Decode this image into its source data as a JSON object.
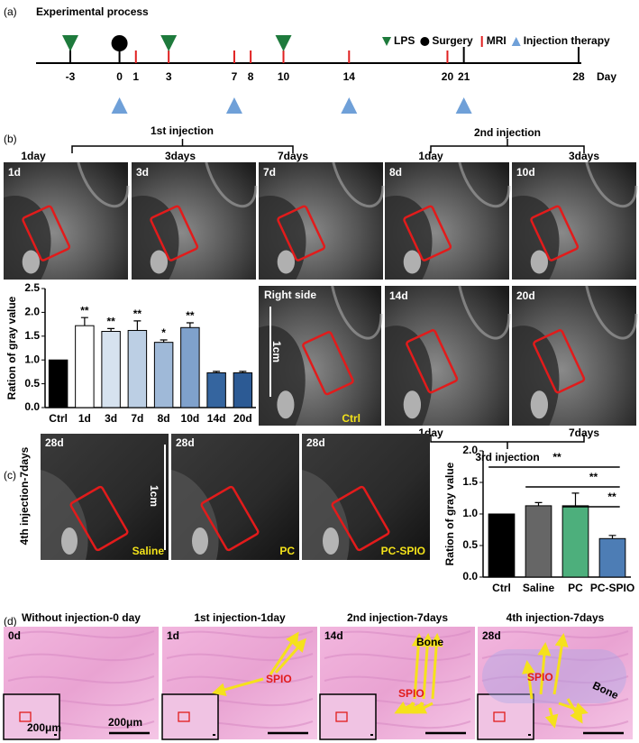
{
  "panel_labels": [
    "(a)",
    "(b)",
    "(c)",
    "(d)"
  ],
  "timeline": {
    "title": "Experimental process",
    "days": [
      -3,
      0,
      1,
      3,
      7,
      8,
      10,
      14,
      20,
      21,
      28
    ],
    "axis_label": "Day",
    "lps_days": [
      -3,
      3,
      10
    ],
    "surgery_days": [
      0
    ],
    "mri_days": [
      1,
      3,
      7,
      8,
      10,
      14,
      20
    ],
    "injection_days": [
      0,
      7,
      14,
      21
    ],
    "legend": [
      {
        "name": "LPS",
        "color": "#1e7a3c"
      },
      {
        "name": "Surgery",
        "color": "#000000"
      },
      {
        "name": "MRI",
        "color": "#e02020"
      },
      {
        "name": "Injection therapy",
        "color": "#6fa0d8"
      }
    ]
  },
  "injections": {
    "first": {
      "label": "1st injection",
      "start": "1day",
      "mid": "3days",
      "end": "7days"
    },
    "second": {
      "label": "2nd injection",
      "start": "1day",
      "end": "3days"
    },
    "third": {
      "label": "3rd injection",
      "start": "1day",
      "end": "7days"
    },
    "fourth": "4th injection-7days"
  },
  "mri_images": [
    "1d",
    "3d",
    "7d",
    "8d",
    "10d"
  ],
  "control_image": {
    "label": "Right side",
    "corner": "Ctrl",
    "scale": "1cm"
  },
  "late_images": [
    "14d",
    "20d"
  ],
  "c_images": {
    "day": [
      "28d",
      "28d",
      "28d"
    ],
    "groups": [
      "Saline",
      "PC",
      "PC-SPIO"
    ],
    "scale": "1cm"
  },
  "histology": {
    "panels": [
      {
        "title": "Without injection-0 day",
        "label": "0d"
      },
      {
        "title": "1st injection-1day",
        "label": "1d"
      },
      {
        "title": "2nd injection-7days",
        "label": "14d"
      },
      {
        "title": "4th injection-7days",
        "label": "28d"
      }
    ],
    "inset_scale": "200μm",
    "scale": "200μm",
    "spio": "SPIO",
    "bone": "Bone"
  },
  "chart_data": [
    {
      "type": "bar",
      "ylabel": "Ration of gray value",
      "categories": [
        "Ctrl",
        "1d",
        "3d",
        "7d",
        "8d",
        "10d",
        "14d",
        "20d"
      ],
      "values": [
        1.0,
        1.72,
        1.6,
        1.62,
        1.37,
        1.68,
        0.73,
        0.73
      ],
      "errors": [
        0,
        0.17,
        0.06,
        0.2,
        0.05,
        0.1,
        0.03,
        0.03
      ],
      "annotations": [
        null,
        "**",
        "**",
        "**",
        "*",
        "**",
        null,
        null
      ],
      "colors": [
        "#000000",
        "#ffffff",
        "#d6e2ef",
        "#bccfe4",
        "#9fb9d8",
        "#7fa1cc",
        "#35659f",
        "#2c5a94"
      ],
      "ylim": [
        0,
        2.5
      ],
      "yticks": [
        {
          "value": 0,
          "label": "0.0"
        },
        0.5,
        {
          "value": 1,
          "label": "1.0"
        },
        1.5,
        {
          "value": 2,
          "label": "2.0"
        },
        2.5
      ]
    },
    {
      "type": "bar",
      "ylabel": "Ration of gray value",
      "categories": [
        "Ctrl",
        "Saline",
        "PC",
        "PC-SPIO"
      ],
      "values": [
        1.0,
        1.13,
        1.13,
        0.61
      ],
      "errors": [
        0,
        0.05,
        0.2,
        0.05
      ],
      "colors": [
        "#000000",
        "#666666",
        "#4daf7c",
        "#4d7db5"
      ],
      "ylim": [
        0,
        2.0
      ],
      "yticks": [
        {
          "value": 0,
          "label": "0.0"
        },
        0.5,
        {
          "value": 1,
          "label": "1.0"
        },
        1.5,
        {
          "value": 2,
          "label": "2.0"
        }
      ],
      "comparisons": [
        {
          "from": "Ctrl",
          "to": "PC-SPIO",
          "label": "**"
        },
        {
          "from": "Saline",
          "to": "PC-SPIO",
          "label": "**"
        },
        {
          "from": "PC",
          "to": "PC-SPIO",
          "label": "**"
        }
      ]
    }
  ]
}
